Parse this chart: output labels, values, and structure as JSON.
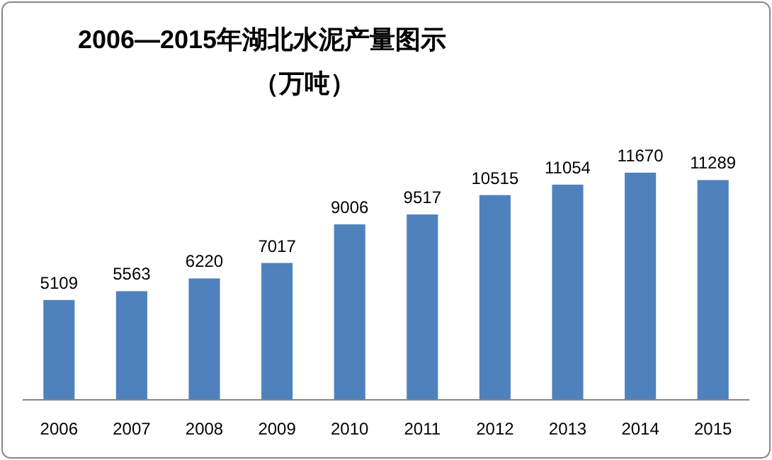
{
  "chart_data": {
    "type": "bar",
    "title": "2006—2015年湖北水泥产量图示",
    "subtitle": "（万吨）",
    "categories": [
      "2006",
      "2007",
      "2008",
      "2009",
      "2010",
      "2011",
      "2012",
      "2013",
      "2014",
      "2015"
    ],
    "values": [
      5109,
      5563,
      6220,
      7017,
      9006,
      9517,
      10515,
      11054,
      11670,
      11289
    ],
    "color": "#4f81bd",
    "data_labels": true
  }
}
